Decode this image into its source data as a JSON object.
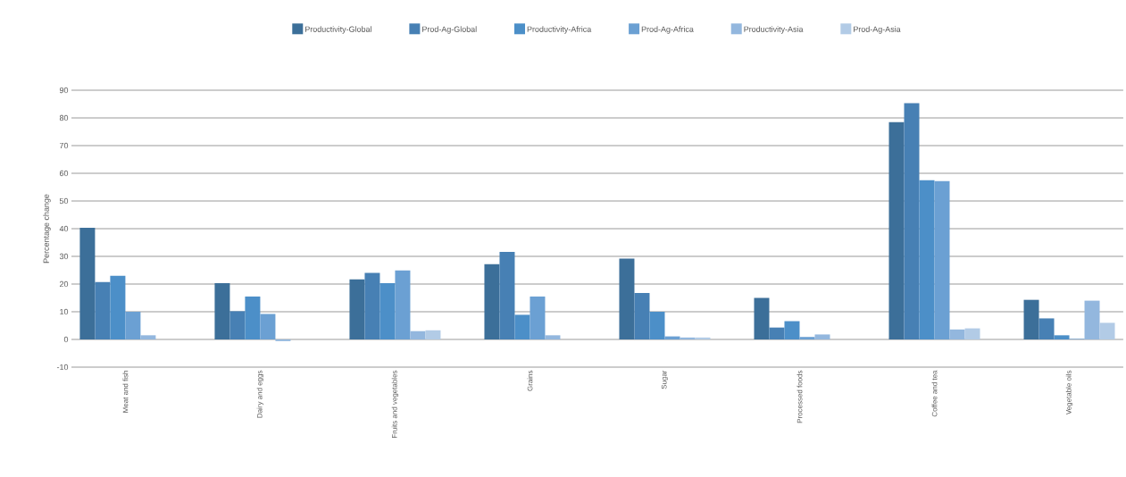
{
  "chart_data": {
    "type": "bar",
    "ylabel": "Percentage change",
    "categories": [
      "Meat and fish",
      "Dairy and eggs",
      "Fruits and vegetables",
      "Grains",
      "Sugar",
      "Processed foods",
      "Coffee and tea",
      "Vegetable oils"
    ],
    "series": [
      {
        "name": "Productivity-Global",
        "color": "#3c6f99",
        "values": [
          40.3,
          20.3,
          21.7,
          27.2,
          29.2,
          15,
          78.5,
          14.3
        ]
      },
      {
        "name": "Prod-Ag-Global",
        "color": "#4780b4",
        "values": [
          20.7,
          10.2,
          24,
          31.6,
          16.8,
          4.3,
          85.3,
          7.6
        ]
      },
      {
        "name": "Productivity-Africa",
        "color": "#4c8fc8",
        "values": [
          23,
          15.5,
          20.3,
          8.9,
          10,
          6.6,
          57.5,
          1.5
        ]
      },
      {
        "name": "Prod-Ag-Africa",
        "color": "#6ba0d3",
        "values": [
          10,
          9.2,
          24.9,
          15.5,
          1.1,
          0.9,
          57.2,
          0.2
        ]
      },
      {
        "name": "Productivity-Asia",
        "color": "#93b7de",
        "values": [
          1.5,
          -0.6,
          3,
          1.5,
          0.7,
          1.8,
          3.6,
          14
        ]
      },
      {
        "name": "Prod-Ag-Asia",
        "color": "#b2cbe6",
        "values": [
          null,
          null,
          3.3,
          null,
          0.7,
          null,
          4,
          6
        ]
      }
    ],
    "ylim": [
      -10,
      90
    ],
    "yticks": [
      -10,
      0,
      10,
      20,
      30,
      40,
      50,
      60,
      70,
      80,
      90
    ],
    "grid": "y",
    "legend": "top"
  }
}
